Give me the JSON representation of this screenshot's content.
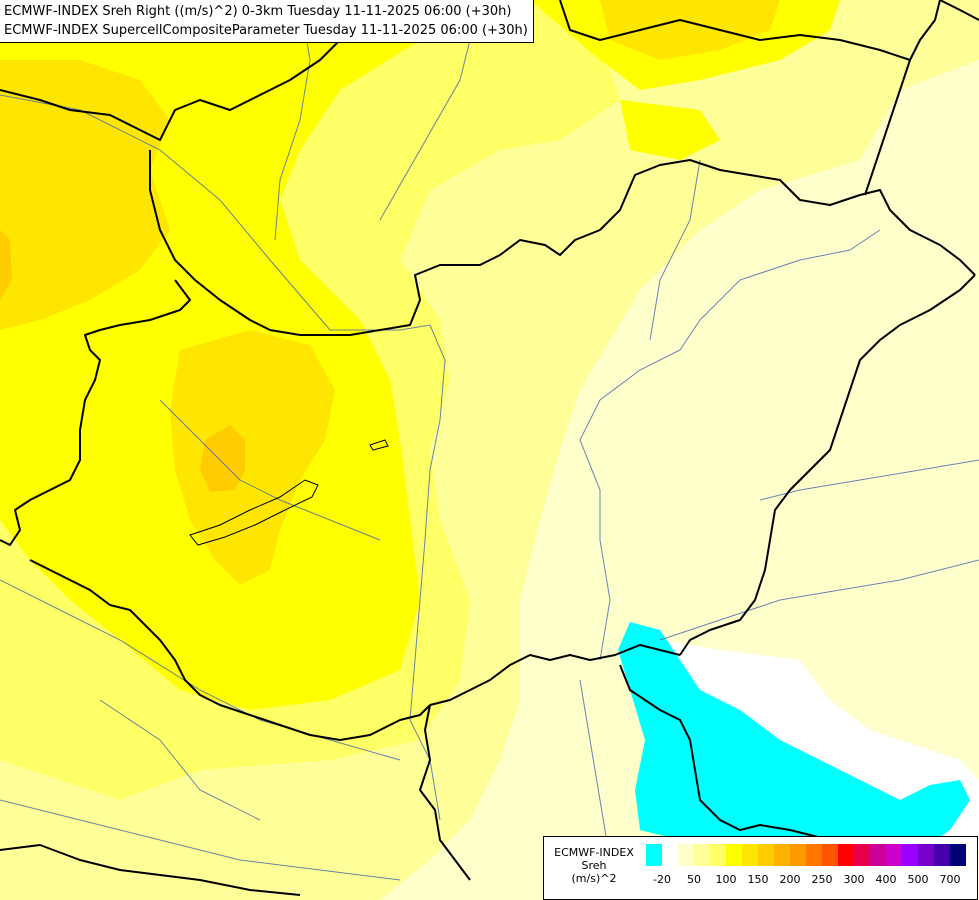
{
  "titles": {
    "line1": "ECMWF-INDEX Sreh Right ((m/s)^2) 0-3km Tuesday 11-11-2025 06:00 (+30h)",
    "line2": "ECMWF-INDEX SupercellCompositeParameter Tuesday 11-11-2025 06:00 (+30h)"
  },
  "legend": {
    "title": "ECMWF-INDEX",
    "param": "Sreh",
    "unit": "(m/s)^2",
    "colors": [
      "#00ffff",
      "#ffffff",
      "#ffffcc",
      "#ffff99",
      "#ffff66",
      "#ffff00",
      "#ffe600",
      "#ffcc00",
      "#ffb300",
      "#ff9900",
      "#ff7700",
      "#ff5500",
      "#ff0000",
      "#e6004c",
      "#cc0099",
      "#cc00cc",
      "#9900ff",
      "#7700cc",
      "#4400aa",
      "#000077"
    ],
    "labels": [
      "-20",
      "50",
      "100",
      "150",
      "200",
      "250",
      "300",
      "400",
      "500",
      "700"
    ]
  },
  "map": {
    "field_colors": {
      "very_light": "#ffffcc",
      "light": "#ffff99",
      "medium_light": "#ffff66",
      "yellow": "#ffff00",
      "gold": "#ffe600",
      "orange_yellow": "#ffcc00",
      "cyan": "#00ffff",
      "white": "#ffffff"
    },
    "border_color": "#000000",
    "river_color": "#4466aa"
  }
}
